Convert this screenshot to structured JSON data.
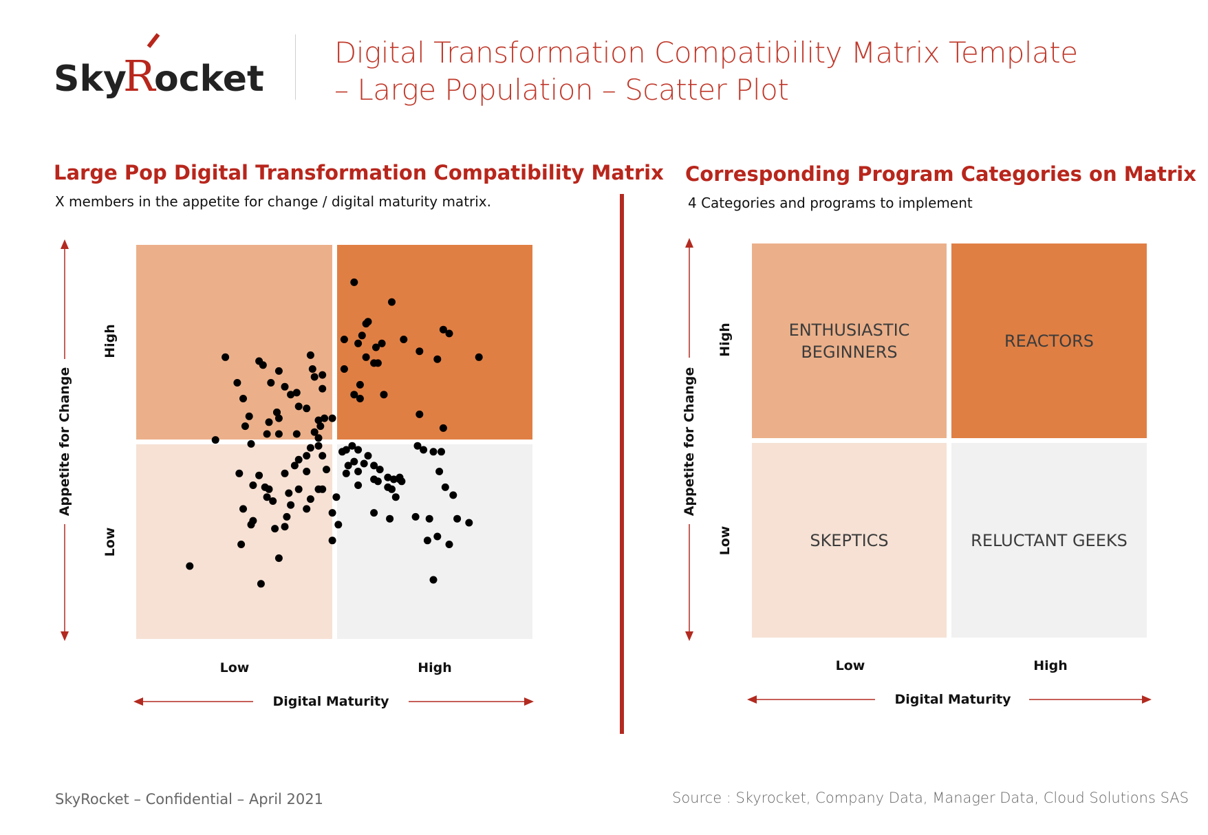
{
  "brand": {
    "logo_text_1": "Sky",
    "logo_text_2": "R",
    "logo_text_3": "ocket"
  },
  "header": {
    "title_line1": "Digital Transformation Compatibility Matrix Template",
    "title_line2": "– Large Population – Scatter Plot"
  },
  "left_panel": {
    "title": "Large Pop Digital Transformation Compatibility Matrix",
    "subtitle": "X members in the appetite for change / digital maturity matrix.",
    "y_axis_label": "Appetite for Change",
    "y_high": "High",
    "y_low": "Low",
    "x_axis_label": "Digital Maturity",
    "x_low": "Low",
    "x_high": "High"
  },
  "right_panel": {
    "title": "Corresponding Program Categories on Matrix",
    "subtitle": "4 Categories and programs to implement",
    "y_axis_label": "Appetite for Change",
    "y_high": "High",
    "y_low": "Low",
    "x_axis_label": "Digital Maturity",
    "x_low": "Low",
    "x_high": "High",
    "quadrants": {
      "top_left_line1": "ENTHUSIASTIC",
      "top_left_line2": "BEGINNERS",
      "top_right": "REACTORS",
      "bottom_left": "SKEPTICS",
      "bottom_right": "RELUCTANT GEEKS"
    }
  },
  "colors": {
    "top_left": "#ebb08a",
    "top_right": "#e07f44",
    "bottom_left": "#f6e1d4",
    "bottom_right": "#f1f1f1",
    "accent": "#b8261c",
    "dot": "#000000"
  },
  "footer": {
    "left": "SkyRocket – Confidential – April 2021",
    "right": "Source : Skyrocket, Company Data, Manager Data, Cloud Solutions SAS"
  },
  "chart_data": {
    "type": "scatter",
    "xlabel": "Digital Maturity",
    "ylabel": "Appetite for Change",
    "xlim": [
      0,
      2
    ],
    "ylim": [
      0,
      2
    ],
    "x_tick_labels": [
      "Low",
      "High"
    ],
    "y_tick_labels": [
      "Low",
      "High"
    ],
    "points": [
      [
        0.45,
        1.43
      ],
      [
        0.62,
        1.41
      ],
      [
        0.64,
        1.39
      ],
      [
        0.72,
        1.36
      ],
      [
        0.88,
        1.44
      ],
      [
        0.68,
        1.3
      ],
      [
        0.75,
        1.28
      ],
      [
        0.9,
        1.33
      ],
      [
        0.94,
        1.34
      ],
      [
        0.89,
        1.37
      ],
      [
        0.78,
        1.24
      ],
      [
        0.82,
        1.18
      ],
      [
        0.94,
        1.27
      ],
      [
        0.81,
        1.25
      ],
      [
        0.54,
        1.22
      ],
      [
        0.51,
        1.3
      ],
      [
        0.57,
        1.13
      ],
      [
        0.55,
        1.08
      ],
      [
        0.67,
        1.1
      ],
      [
        0.71,
        1.15
      ],
      [
        0.86,
        1.17
      ],
      [
        0.92,
        1.11
      ],
      [
        0.95,
        1.12
      ],
      [
        0.99,
        1.12
      ],
      [
        0.93,
        1.08
      ],
      [
        0.9,
        1.05
      ],
      [
        0.92,
        1.02
      ],
      [
        0.81,
        1.04
      ],
      [
        0.72,
        1.04
      ],
      [
        0.66,
        1.04
      ],
      [
        0.58,
        0.99
      ],
      [
        0.4,
        1.01
      ],
      [
        0.71,
        1.15
      ],
      [
        0.72,
        1.12
      ],
      [
        1.1,
        1.81
      ],
      [
        1.29,
        1.71
      ],
      [
        1.17,
        1.61
      ],
      [
        1.16,
        1.6
      ],
      [
        1.12,
        1.5
      ],
      [
        1.14,
        1.54
      ],
      [
        1.05,
        1.52
      ],
      [
        1.16,
        1.43
      ],
      [
        1.21,
        1.48
      ],
      [
        1.24,
        1.5
      ],
      [
        1.13,
        1.29
      ],
      [
        1.2,
        1.4
      ],
      [
        1.22,
        1.4
      ],
      [
        1.35,
        1.52
      ],
      [
        1.43,
        1.46
      ],
      [
        1.52,
        1.42
      ],
      [
        1.55,
        1.57
      ],
      [
        1.58,
        1.55
      ],
      [
        1.73,
        1.43
      ],
      [
        1.1,
        1.24
      ],
      [
        1.13,
        1.22
      ],
      [
        1.25,
        1.24
      ],
      [
        1.43,
        1.14
      ],
      [
        1.55,
        1.07
      ],
      [
        1.05,
        1.37
      ],
      [
        0.92,
        0.98
      ],
      [
        0.88,
        0.97
      ],
      [
        0.86,
        0.93
      ],
      [
        0.94,
        0.93
      ],
      [
        1.04,
        0.95
      ],
      [
        1.06,
        0.96
      ],
      [
        1.09,
        0.98
      ],
      [
        1.12,
        0.96
      ],
      [
        1.1,
        0.9
      ],
      [
        1.17,
        0.93
      ],
      [
        1.15,
        0.89
      ],
      [
        1.06,
        0.84
      ],
      [
        1.12,
        0.85
      ],
      [
        1.07,
        0.88
      ],
      [
        1.12,
        0.78
      ],
      [
        1.2,
        0.88
      ],
      [
        1.23,
        0.86
      ],
      [
        1.27,
        0.82
      ],
      [
        1.3,
        0.81
      ],
      [
        1.33,
        0.81
      ],
      [
        1.34,
        0.8
      ],
      [
        1.42,
        0.98
      ],
      [
        1.45,
        0.96
      ],
      [
        1.5,
        0.95
      ],
      [
        1.54,
        0.95
      ],
      [
        1.53,
        0.85
      ],
      [
        1.56,
        0.77
      ],
      [
        1.6,
        0.73
      ],
      [
        1.48,
        0.61
      ],
      [
        1.52,
        0.52
      ],
      [
        1.47,
        0.5
      ],
      [
        1.41,
        0.62
      ],
      [
        1.28,
        0.61
      ],
      [
        1.22,
        0.8
      ],
      [
        1.27,
        0.77
      ],
      [
        1.29,
        0.76
      ],
      [
        1.2,
        0.81
      ],
      [
        1.33,
        0.82
      ],
      [
        1.31,
        0.72
      ],
      [
        1.2,
        0.64
      ],
      [
        1.62,
        0.61
      ],
      [
        1.68,
        0.59
      ],
      [
        1.58,
        0.48
      ],
      [
        1.5,
        0.3
      ],
      [
        1.01,
        0.72
      ],
      [
        0.99,
        0.64
      ],
      [
        1.02,
        0.58
      ],
      [
        0.99,
        0.5
      ],
      [
        0.94,
        0.76
      ],
      [
        0.82,
        0.91
      ],
      [
        0.8,
        0.88
      ],
      [
        0.86,
        0.85
      ],
      [
        0.96,
        0.86
      ],
      [
        0.92,
        0.76
      ],
      [
        0.82,
        0.76
      ],
      [
        0.77,
        0.74
      ],
      [
        0.88,
        0.71
      ],
      [
        0.86,
        0.66
      ],
      [
        0.78,
        0.68
      ],
      [
        0.76,
        0.62
      ],
      [
        0.75,
        0.57
      ],
      [
        0.7,
        0.56
      ],
      [
        0.65,
        0.77
      ],
      [
        0.67,
        0.76
      ],
      [
        0.62,
        0.83
      ],
      [
        0.52,
        0.84
      ],
      [
        0.59,
        0.78
      ],
      [
        0.54,
        0.66
      ],
      [
        0.58,
        0.58
      ],
      [
        0.59,
        0.6
      ],
      [
        0.53,
        0.48
      ],
      [
        0.72,
        0.41
      ],
      [
        0.63,
        0.28
      ],
      [
        0.27,
        0.37
      ],
      [
        0.66,
        0.72
      ],
      [
        0.75,
        0.84
      ],
      [
        0.69,
        0.7
      ]
    ]
  }
}
